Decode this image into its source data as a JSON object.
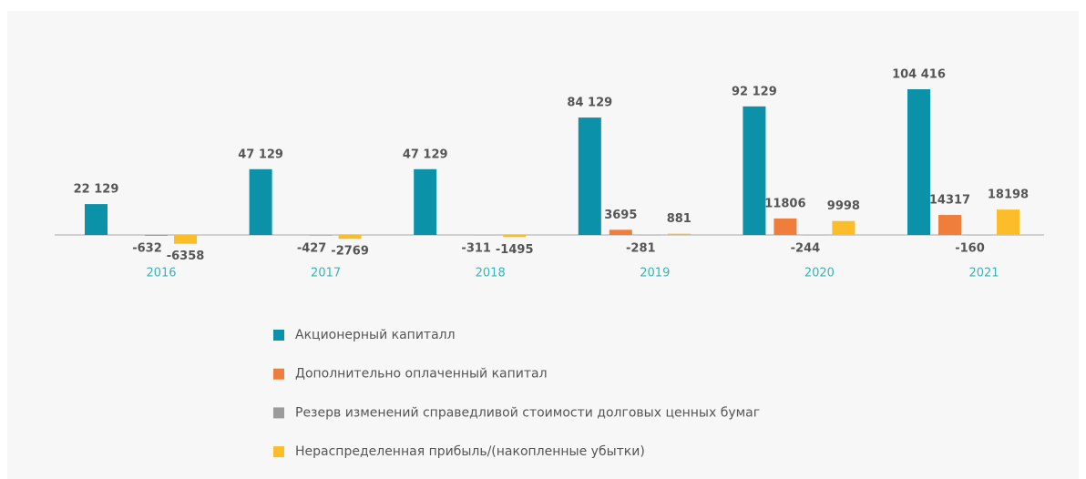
{
  "chart_data": {
    "type": "bar",
    "categories": [
      "2016",
      "2017",
      "2018",
      "2019",
      "2020",
      "2021"
    ],
    "series": [
      {
        "name": "Акционерный капиталл",
        "color": "#0b91a8",
        "values": [
          22129,
          47129,
          47129,
          84129,
          92129,
          104416
        ],
        "value_labels": [
          "22 129",
          "47 129",
          "47 129",
          "84 129",
          "92 129",
          "104 416"
        ]
      },
      {
        "name": "Дополнительно оплаченный капитал",
        "color": "#ef7d3b",
        "values": [
          null,
          null,
          null,
          3695,
          11806,
          14317
        ]
      },
      {
        "name": "Резерв изменений справедливой стоимости долговых ценных бумаг",
        "color": "#9b9b9b",
        "values": [
          -632,
          -427,
          -311,
          -281,
          -244,
          -160
        ]
      },
      {
        "name": "Нераспределенная прибыль/(накопленные убытки)",
        "color": "#fcbd2b",
        "values": [
          -6358,
          -2769,
          -1495,
          881,
          9998,
          18198
        ]
      }
    ]
  }
}
